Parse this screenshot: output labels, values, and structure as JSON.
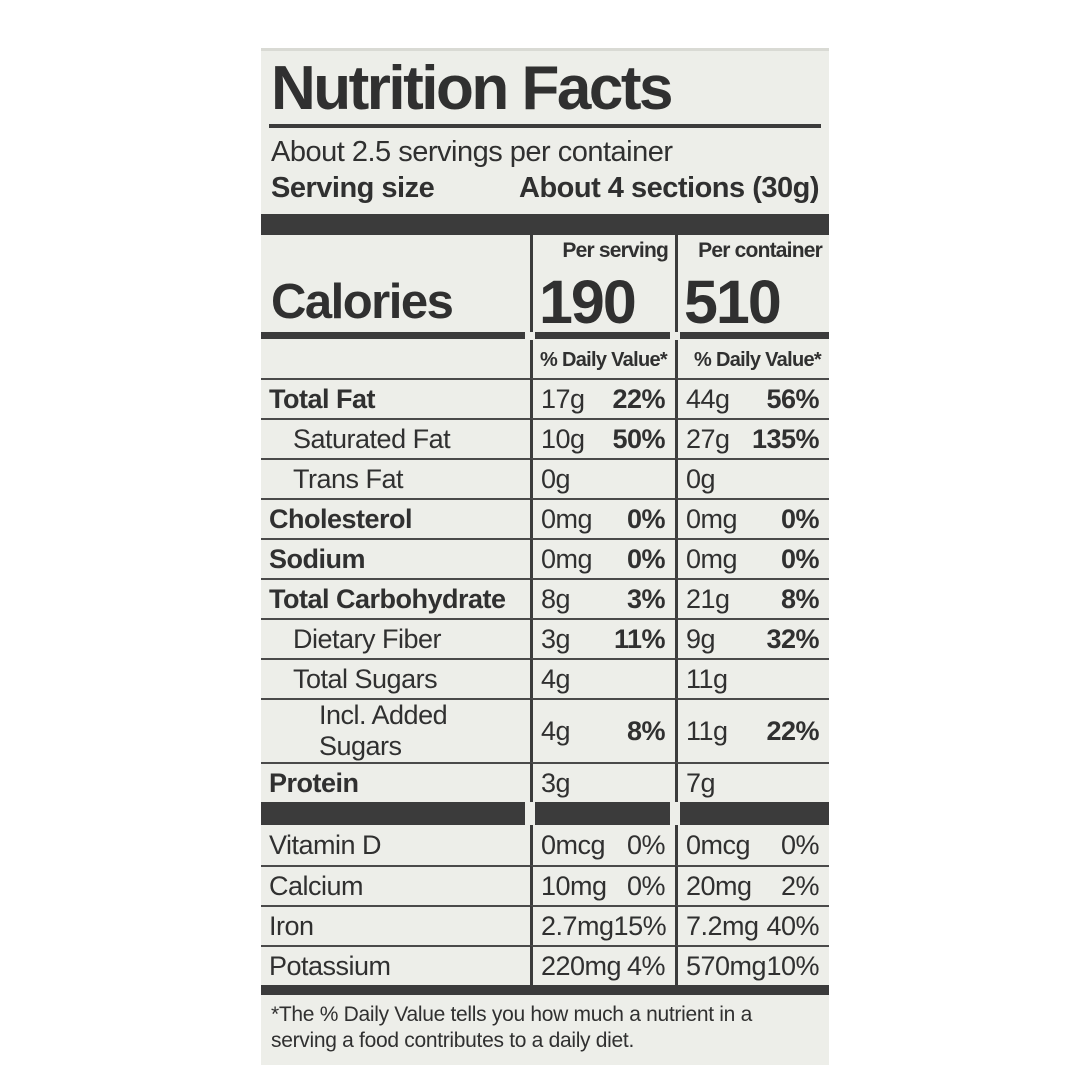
{
  "label": {
    "title": "Nutrition Facts",
    "servings_per_container": "About 2.5 servings per container",
    "serving_size_label": "Serving size",
    "serving_size_value": "About 4 sections (30g)",
    "calories": {
      "label": "Calories",
      "per_serving_header": "Per serving",
      "per_container_header": "Per container",
      "per_serving_value": "190",
      "per_container_value": "510"
    },
    "daily_value_header": "% Daily Value*",
    "rows": [
      {
        "name": "Total Fat",
        "s_amt": "17g",
        "s_dv": "22%",
        "c_amt": "44g",
        "c_dv": "56%"
      },
      {
        "name": "Saturated Fat",
        "s_amt": "10g",
        "s_dv": "50%",
        "c_amt": "27g",
        "c_dv": "135%"
      },
      {
        "name": "Trans Fat",
        "s_amt": "0g",
        "s_dv": "",
        "c_amt": "0g",
        "c_dv": ""
      },
      {
        "name": "Cholesterol",
        "s_amt": "0mg",
        "s_dv": "0%",
        "c_amt": "0mg",
        "c_dv": "0%"
      },
      {
        "name": "Sodium",
        "s_amt": "0mg",
        "s_dv": "0%",
        "c_amt": "0mg",
        "c_dv": "0%"
      },
      {
        "name": "Total Carbohydrate",
        "s_amt": "8g",
        "s_dv": "3%",
        "c_amt": "21g",
        "c_dv": "8%"
      },
      {
        "name": "Dietary Fiber",
        "s_amt": "3g",
        "s_dv": "11%",
        "c_amt": "9g",
        "c_dv": "32%"
      },
      {
        "name": "Total Sugars",
        "s_amt": "4g",
        "s_dv": "",
        "c_amt": "11g",
        "c_dv": ""
      },
      {
        "name": "Incl. Added Sugars",
        "s_amt": "4g",
        "s_dv": "8%",
        "c_amt": "11g",
        "c_dv": "22%"
      },
      {
        "name": "Protein",
        "s_amt": "3g",
        "s_dv": "",
        "c_amt": "7g",
        "c_dv": ""
      }
    ],
    "micronutrients": [
      {
        "name": "Vitamin D",
        "s_amt": "0mcg",
        "s_dv": "0%",
        "c_amt": "0mcg",
        "c_dv": "0%"
      },
      {
        "name": "Calcium",
        "s_amt": "10mg",
        "s_dv": "0%",
        "c_amt": "20mg",
        "c_dv": "2%"
      },
      {
        "name": "Iron",
        "s_amt": "2.7mg",
        "s_dv": "15%",
        "c_amt": "7.2mg",
        "c_dv": "40%"
      },
      {
        "name": "Potassium",
        "s_amt": "220mg",
        "s_dv": "4%",
        "c_amt": "570mg",
        "c_dv": "10%"
      }
    ],
    "footnote": "*The % Daily Value tells you how much a nutrient in a serving a food contributes to a daily diet.",
    "colors": {
      "ink": "#3b3b3b",
      "label_bg": "#edeee9",
      "page_bg": "#ffffff"
    }
  }
}
